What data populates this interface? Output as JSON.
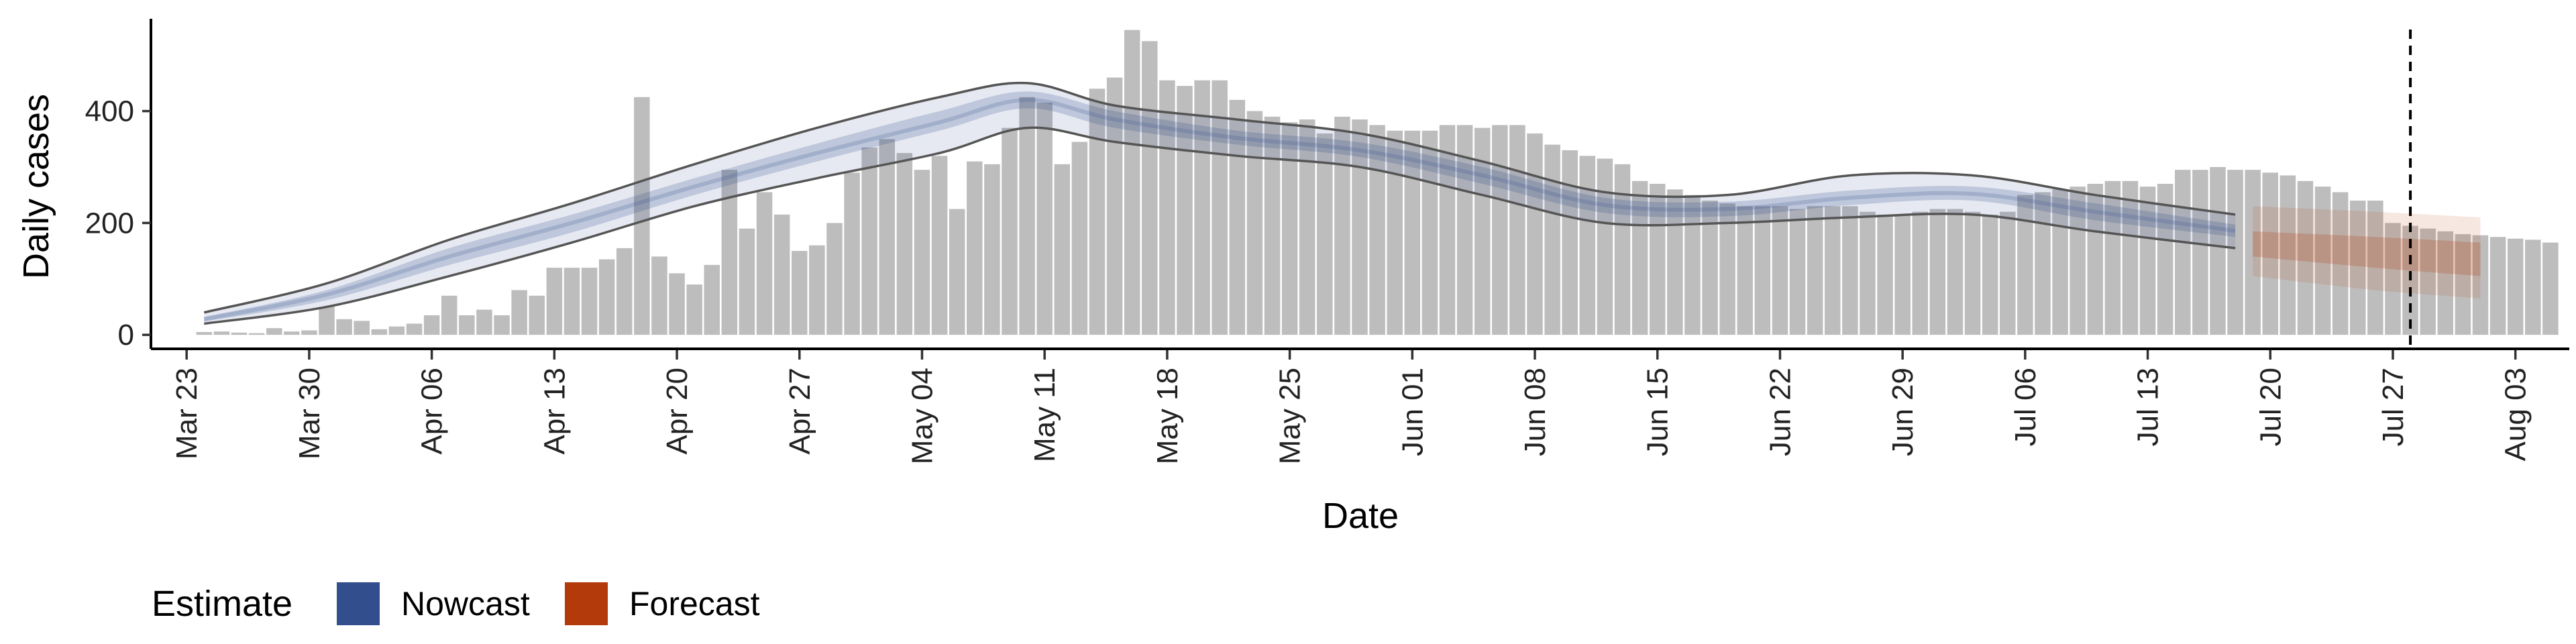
{
  "chart_data": {
    "type": "bar",
    "title": "",
    "xlabel": "Date",
    "ylabel": "Daily cases",
    "x_start_date": "2020-03-24",
    "xlim": [
      "2020-03-21",
      "2020-08-06"
    ],
    "ylim": [
      -25,
      565
    ],
    "yticks": [
      0,
      200,
      400
    ],
    "xticks": [
      "Mar 23",
      "Mar 30",
      "Apr 06",
      "Apr 13",
      "Apr 20",
      "Apr 27",
      "May 04",
      "May 11",
      "May 18",
      "May 25",
      "Jun 01",
      "Jun 08",
      "Jun 15",
      "Jun 22",
      "Jun 29",
      "Jul 06",
      "Jul 13",
      "Jul 20",
      "Jul 27",
      "Aug 03"
    ],
    "vline_date": "2020-07-28",
    "grid": false,
    "legend": {
      "title": "Estimate",
      "position": "bottom-left",
      "entries": [
        {
          "label": "Nowcast",
          "color": "#334e8c"
        },
        {
          "label": "Forecast",
          "color": "#b33a0a"
        }
      ]
    },
    "reported_cases": {
      "color": "#bdbdbd",
      "values": [
        5,
        6,
        4,
        3,
        12,
        6,
        8,
        50,
        28,
        25,
        10,
        15,
        20,
        35,
        70,
        35,
        45,
        35,
        80,
        70,
        120,
        120,
        120,
        135,
        155,
        425,
        140,
        110,
        90,
        125,
        295,
        190,
        255,
        215,
        150,
        160,
        200,
        290,
        335,
        350,
        325,
        295,
        320,
        225,
        310,
        305,
        370,
        425,
        415,
        305,
        345,
        440,
        460,
        545,
        525,
        455,
        445,
        455,
        455,
        420,
        400,
        390,
        380,
        385,
        360,
        390,
        385,
        375,
        365,
        365,
        365,
        375,
        375,
        370,
        375,
        375,
        360,
        340,
        330,
        320,
        315,
        305,
        275,
        270,
        260,
        250,
        240,
        235,
        230,
        230,
        230,
        225,
        230,
        230,
        230,
        220,
        215,
        215,
        220,
        225,
        225,
        220,
        215,
        220,
        250,
        255,
        260,
        265,
        270,
        275,
        275,
        265,
        270,
        295,
        295,
        300,
        295,
        295,
        290,
        285,
        275,
        265,
        255,
        240,
        240,
        200,
        195,
        190,
        185,
        180,
        178,
        175,
        172,
        170,
        165
      ]
    },
    "nowcast": {
      "color": "#334e8c",
      "dates": [
        "2020-03-24",
        "2020-03-31",
        "2020-04-07",
        "2020-04-14",
        "2020-04-21",
        "2020-04-28",
        "2020-05-05",
        "2020-05-10",
        "2020-05-15",
        "2020-05-22",
        "2020-05-29",
        "2020-06-05",
        "2020-06-12",
        "2020-06-19",
        "2020-06-26",
        "2020-07-03",
        "2020-07-10",
        "2020-07-18"
      ],
      "lower_90": [
        20,
        50,
        105,
        165,
        230,
        280,
        325,
        370,
        345,
        320,
        300,
        250,
        200,
        200,
        210,
        215,
        185,
        155
      ],
      "lower_50": [
        24,
        62,
        125,
        183,
        250,
        310,
        365,
        405,
        370,
        340,
        318,
        270,
        218,
        212,
        232,
        240,
        205,
        175
      ],
      "median": [
        28,
        72,
        140,
        200,
        265,
        325,
        380,
        420,
        385,
        352,
        330,
        285,
        232,
        225,
        245,
        252,
        220,
        186
      ],
      "upper_50": [
        32,
        80,
        155,
        215,
        280,
        342,
        400,
        435,
        400,
        365,
        344,
        300,
        245,
        238,
        258,
        265,
        235,
        197
      ],
      "upper_90": [
        40,
        92,
        170,
        235,
        305,
        370,
        425,
        450,
        410,
        385,
        360,
        310,
        255,
        250,
        285,
        285,
        250,
        215
      ]
    },
    "forecast": {
      "color": "#b33a0a",
      "dates": [
        "2020-07-19",
        "2020-07-26",
        "2020-08-01"
      ],
      "lower_90": [
        105,
        80,
        65
      ],
      "lower_50": [
        140,
        120,
        105
      ],
      "median": [
        165,
        148,
        135
      ],
      "upper_50": [
        185,
        175,
        165
      ],
      "upper_90": [
        230,
        220,
        210
      ]
    }
  }
}
